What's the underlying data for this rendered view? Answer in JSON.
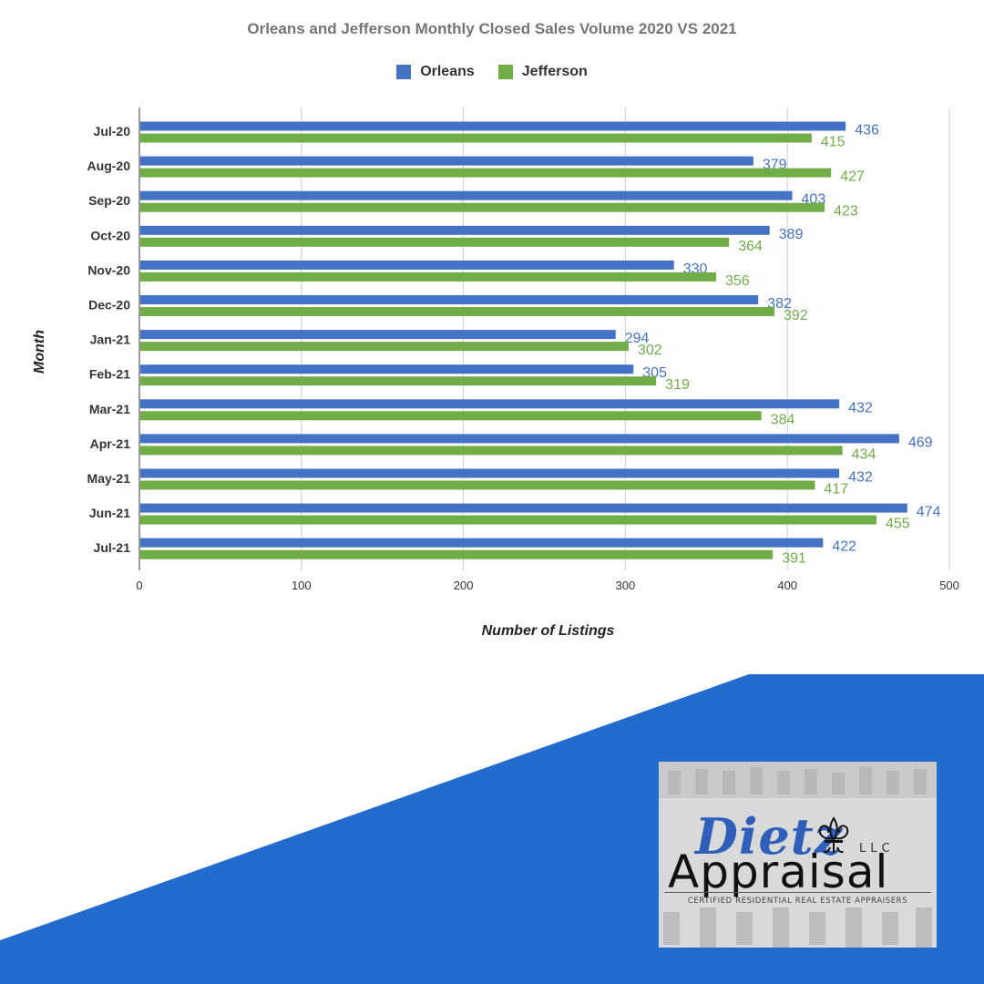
{
  "chart_data": {
    "type": "bar",
    "orientation": "horizontal",
    "title": "Orleans and Jefferson Monthly Closed Sales Volume 2020 VS 2021",
    "xlabel": "Number of Listings",
    "ylabel": "Month",
    "xlim": [
      0,
      500
    ],
    "xticks": [
      0,
      100,
      200,
      300,
      400,
      500
    ],
    "grid": true,
    "legend_position": "top-center",
    "categories": [
      "Jul-20",
      "Aug-20",
      "Sep-20",
      "Oct-20",
      "Nov-20",
      "Dec-20",
      "Jan-21",
      "Feb-21",
      "Mar-21",
      "Apr-21",
      "May-21",
      "Jun-21",
      "Jul-21"
    ],
    "series": [
      {
        "name": "Orleans",
        "color": "#4472c4",
        "values": [
          436,
          379,
          403,
          389,
          330,
          382,
          294,
          305,
          432,
          469,
          432,
          474,
          422
        ]
      },
      {
        "name": "Jefferson",
        "color": "#70ad47",
        "values": [
          415,
          427,
          423,
          364,
          356,
          392,
          302,
          319,
          384,
          434,
          417,
          455,
          391
        ]
      }
    ]
  },
  "logo": {
    "script_text": "Dietz",
    "llc_text": "LLC",
    "main_text": "Appraisal",
    "tagline": "CERTIFIED RESIDENTIAL REAL ESTATE APPRAISERS",
    "icon": "fleur-de-lis-icon"
  },
  "colors": {
    "banner": "#236bcc"
  }
}
